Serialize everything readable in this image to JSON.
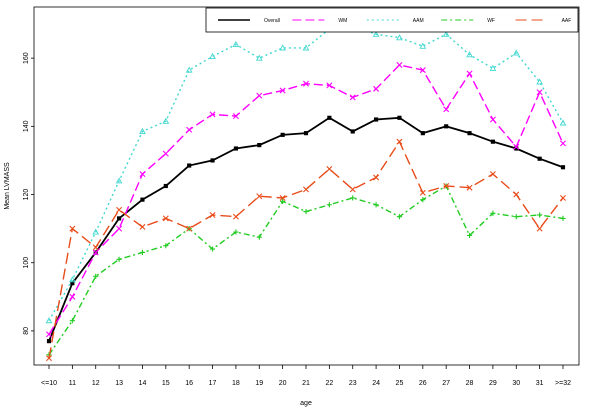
{
  "chart_data": {
    "type": "line",
    "title": "",
    "xlabel": "age",
    "ylabel": "Mean LVMASS",
    "ylim": [
      70,
      175
    ],
    "yticks": [
      80,
      100,
      120,
      140,
      160
    ],
    "categories": [
      "<=10",
      "11",
      "12",
      "13",
      "14",
      "15",
      "16",
      "17",
      "18",
      "19",
      "20",
      "21",
      "22",
      "23",
      "24",
      "25",
      "26",
      "27",
      "28",
      "29",
      "30",
      "31",
      ">=32"
    ],
    "legend_position": "top-right",
    "grid": false,
    "series": [
      {
        "name": "Overall",
        "color": "#000000",
        "dash": "",
        "marker": "square",
        "values": [
          77,
          94,
          103,
          113,
          118.5,
          122.5,
          128.5,
          130,
          133.5,
          134.5,
          137.5,
          138,
          142.5,
          138.5,
          142,
          142.5,
          138,
          140,
          138,
          135.5,
          133.5,
          130.5,
          128
        ]
      },
      {
        "name": "WM",
        "color": "#ff00ff",
        "dash": "9,4",
        "marker": "x",
        "values": [
          79,
          90,
          103,
          110,
          126,
          132,
          139,
          143.5,
          143,
          149,
          150.5,
          152.5,
          152,
          148.5,
          151,
          158,
          156.5,
          145,
          155.5,
          142,
          134,
          150,
          135
        ]
      },
      {
        "name": "AAM",
        "color": "#40d8d0",
        "dash": "2,3",
        "marker": "triangle",
        "values": [
          83,
          95,
          109,
          124,
          138.5,
          141.5,
          156.5,
          160.5,
          164,
          160,
          163,
          163,
          168.5,
          169.5,
          167,
          166,
          163.5,
          167,
          161,
          157,
          161.5,
          153,
          141
        ]
      },
      {
        "name": "WF",
        "color": "#22cc22",
        "dash": "6,3,2,3",
        "marker": "plus",
        "values": [
          73,
          83,
          96,
          101,
          103,
          105,
          110,
          104,
          109,
          107.5,
          118,
          115,
          117,
          119,
          117,
          113.5,
          118.5,
          122.5,
          108,
          114.5,
          113.5,
          114,
          113
        ]
      },
      {
        "name": "AAF",
        "color": "#e84c1a",
        "dash": "11,5",
        "marker": "x",
        "values": [
          72,
          110,
          104.5,
          115.5,
          110.5,
          113,
          110,
          114,
          113.5,
          119.5,
          119,
          121.5,
          127.5,
          121.5,
          125,
          135.5,
          120.5,
          122.5,
          122,
          126,
          120,
          110,
          119
        ]
      }
    ]
  }
}
